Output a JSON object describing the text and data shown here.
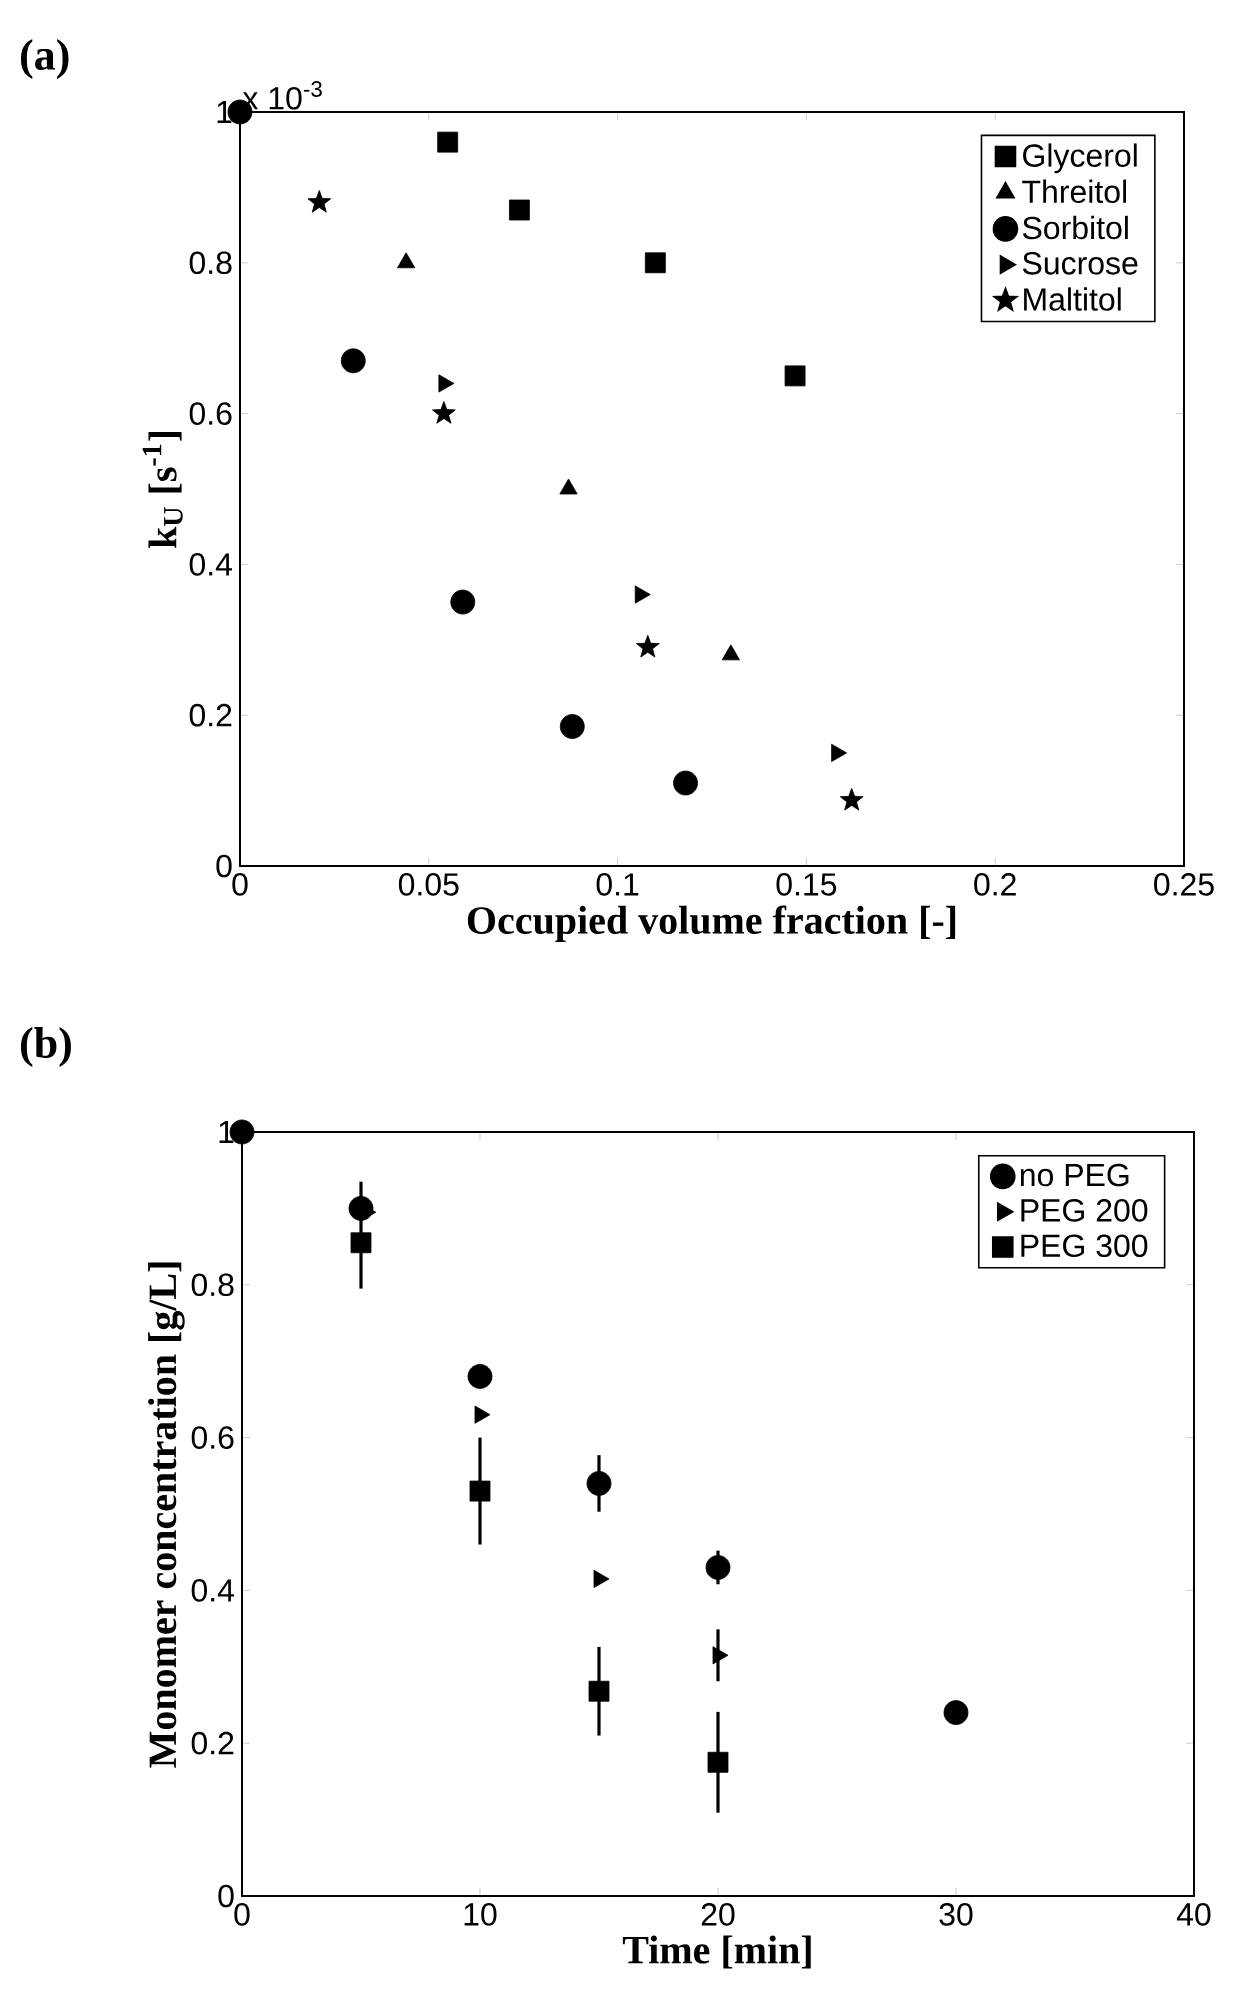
{
  "chart_data": [
    {
      "type": "scatter",
      "title": "(a)",
      "xlabel": "Occupied volume fraction [-]",
      "ylabel": "k$_{U}$  [s$^{-1}$]",
      "annotations": [
        "x 10$^{-3}$"
      ],
      "xlim": [
        0,
        0.25
      ],
      "ylim": [
        0,
        1
      ],
      "xticks": [
        0,
        0.05,
        0.1,
        0.15,
        0.2,
        0.25
      ],
      "yticks": [
        0,
        0.2,
        0.4,
        0.6,
        0.8,
        1
      ],
      "legend": "top right",
      "series": [
        {
          "name": "Glycerol",
          "color": "#000000",
          "marker": "square",
          "x": [
            0.055,
            0.074,
            0.11,
            0.147
          ],
          "values": [
            0.96,
            0.87,
            0.8,
            0.65
          ]
        },
        {
          "name": "Threitol",
          "color": "#000000",
          "marker": "triangle",
          "x": [
            0.044,
            0.087,
            0.13
          ],
          "values": [
            0.8,
            0.5,
            0.28
          ]
        },
        {
          "name": "Sorbitol",
          "color": "#000000",
          "marker": "circle",
          "x": [
            0,
            0.03,
            0.059,
            0.088,
            0.118
          ],
          "values": [
            1,
            0.67,
            0.35,
            0.185,
            0.11
          ]
        },
        {
          "name": "Sucrose",
          "color": "#000000",
          "marker": "triangle-right",
          "x": [
            0.054,
            0.106,
            0.158
          ],
          "values": [
            0.64,
            0.36,
            0.15
          ]
        },
        {
          "name": "Maltitol",
          "color": "#000000",
          "marker": "star",
          "x": [
            0.021,
            0.054,
            0.108,
            0.162
          ],
          "values": [
            0.88,
            0.6,
            0.29,
            0.087
          ]
        }
      ]
    },
    {
      "type": "scatter",
      "title": "(b)",
      "xlabel": "Time [min]",
      "ylabel": "Monomer concentration [g/L]",
      "xlim": [
        0,
        40
      ],
      "ylim": [
        0,
        1
      ],
      "xticks": [
        0,
        10,
        20,
        30,
        40
      ],
      "yticks": [
        0,
        0.2,
        0.4,
        0.6,
        0.8,
        1
      ],
      "legend": "top right",
      "series": [
        {
          "name": "no PEG",
          "color": "#000000",
          "marker": "circle",
          "x": [
            0,
            5,
            10,
            15,
            20,
            30
          ],
          "values": [
            1,
            0.9,
            0.68,
            0.54,
            0.43,
            0.24
          ],
          "errors": [
            null,
            null,
            null,
            0.037,
            0.022,
            null
          ]
        },
        {
          "name": "PEG 200",
          "color": "#000000",
          "marker": "triangle-right",
          "x": [
            5.2,
            10,
            15,
            20
          ],
          "values": [
            0.895,
            0.63,
            0.415,
            0.315
          ],
          "errors": [
            null,
            null,
            null,
            0.034
          ]
        },
        {
          "name": "PEG 300",
          "color": "#000000",
          "marker": "square",
          "x": [
            5,
            10,
            15,
            20
          ],
          "values": [
            0.855,
            0.53,
            0.268,
            0.175
          ],
          "errors": [
            [
              0.795,
              0.935
            ],
            [
              0.46,
              0.6
            ],
            0.058,
            0.066
          ]
        }
      ]
    }
  ]
}
